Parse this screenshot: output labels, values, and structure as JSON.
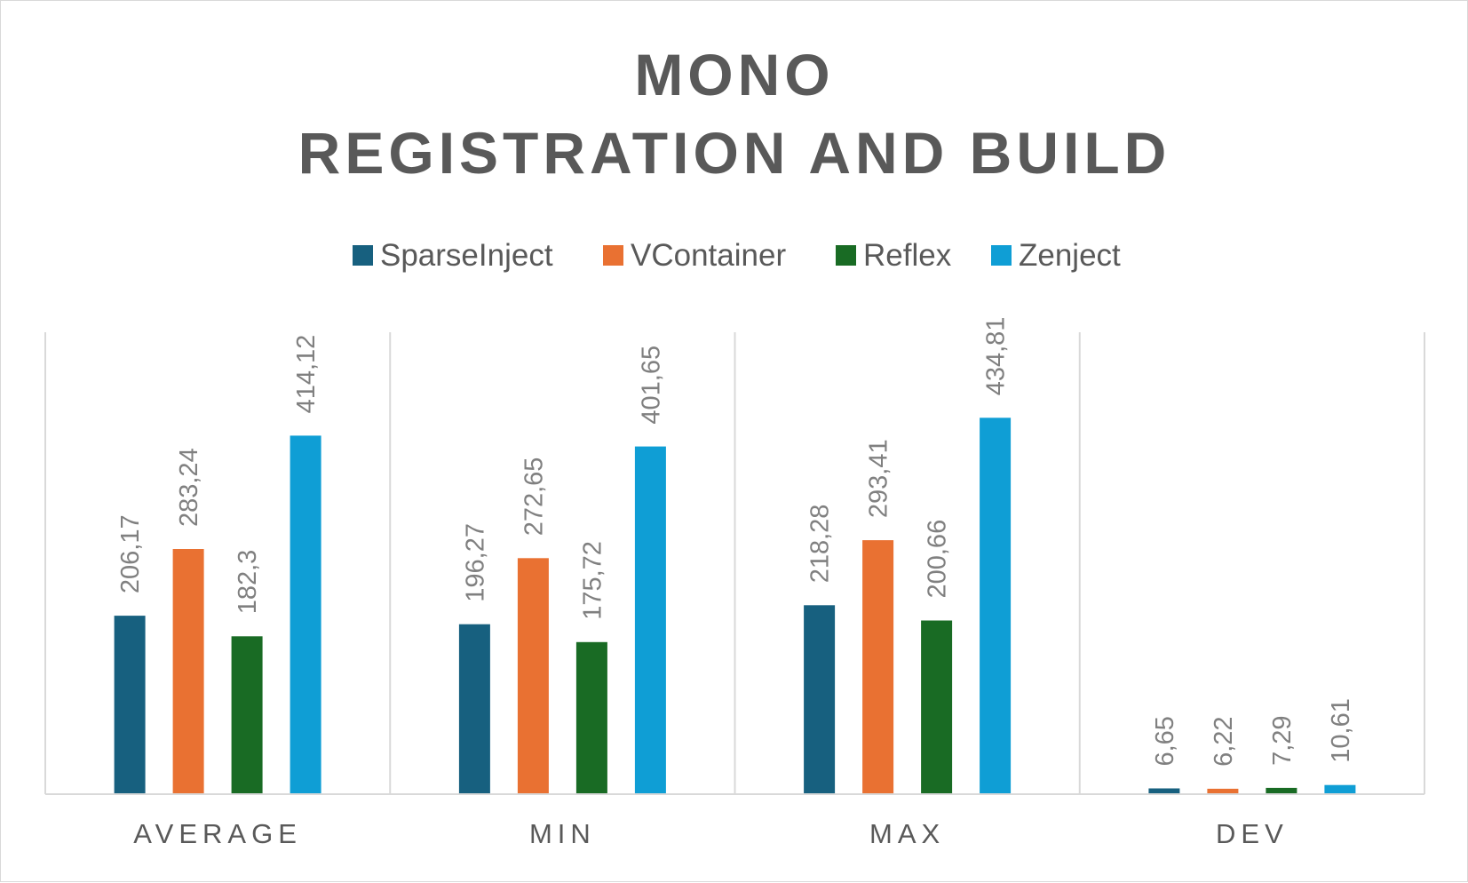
{
  "chart_data": {
    "type": "bar",
    "title_lines": [
      "MONO",
      "REGISTRATION AND BUILD"
    ],
    "categories": [
      "AVERAGE",
      "MIN",
      "MAX",
      "DEV"
    ],
    "series": [
      {
        "name": "SparseInject",
        "color": "#17607f",
        "values": [
          206.17,
          196.27,
          218.28,
          6.65
        ],
        "labels": [
          "206,17",
          "196,27",
          "218,28",
          "6,65"
        ]
      },
      {
        "name": "VContainer",
        "color": "#e97132",
        "values": [
          283.24,
          272.65,
          293.41,
          6.22
        ],
        "labels": [
          "283,24",
          "272,65",
          "293,41",
          "6,22"
        ]
      },
      {
        "name": "Reflex",
        "color": "#196b24",
        "values": [
          182.3,
          175.72,
          200.66,
          7.29
        ],
        "labels": [
          "182,3",
          "175,72",
          "200,66",
          "7,29"
        ]
      },
      {
        "name": "Zenject",
        "color": "#0f9ed5",
        "values": [
          414.12,
          401.65,
          434.81,
          10.61
        ],
        "labels": [
          "414,12",
          "401,65",
          "434,81",
          "10,61"
        ]
      }
    ],
    "ylim": [
      0,
      500
    ],
    "legend_position": "top",
    "grid": false,
    "category_separators": true
  }
}
